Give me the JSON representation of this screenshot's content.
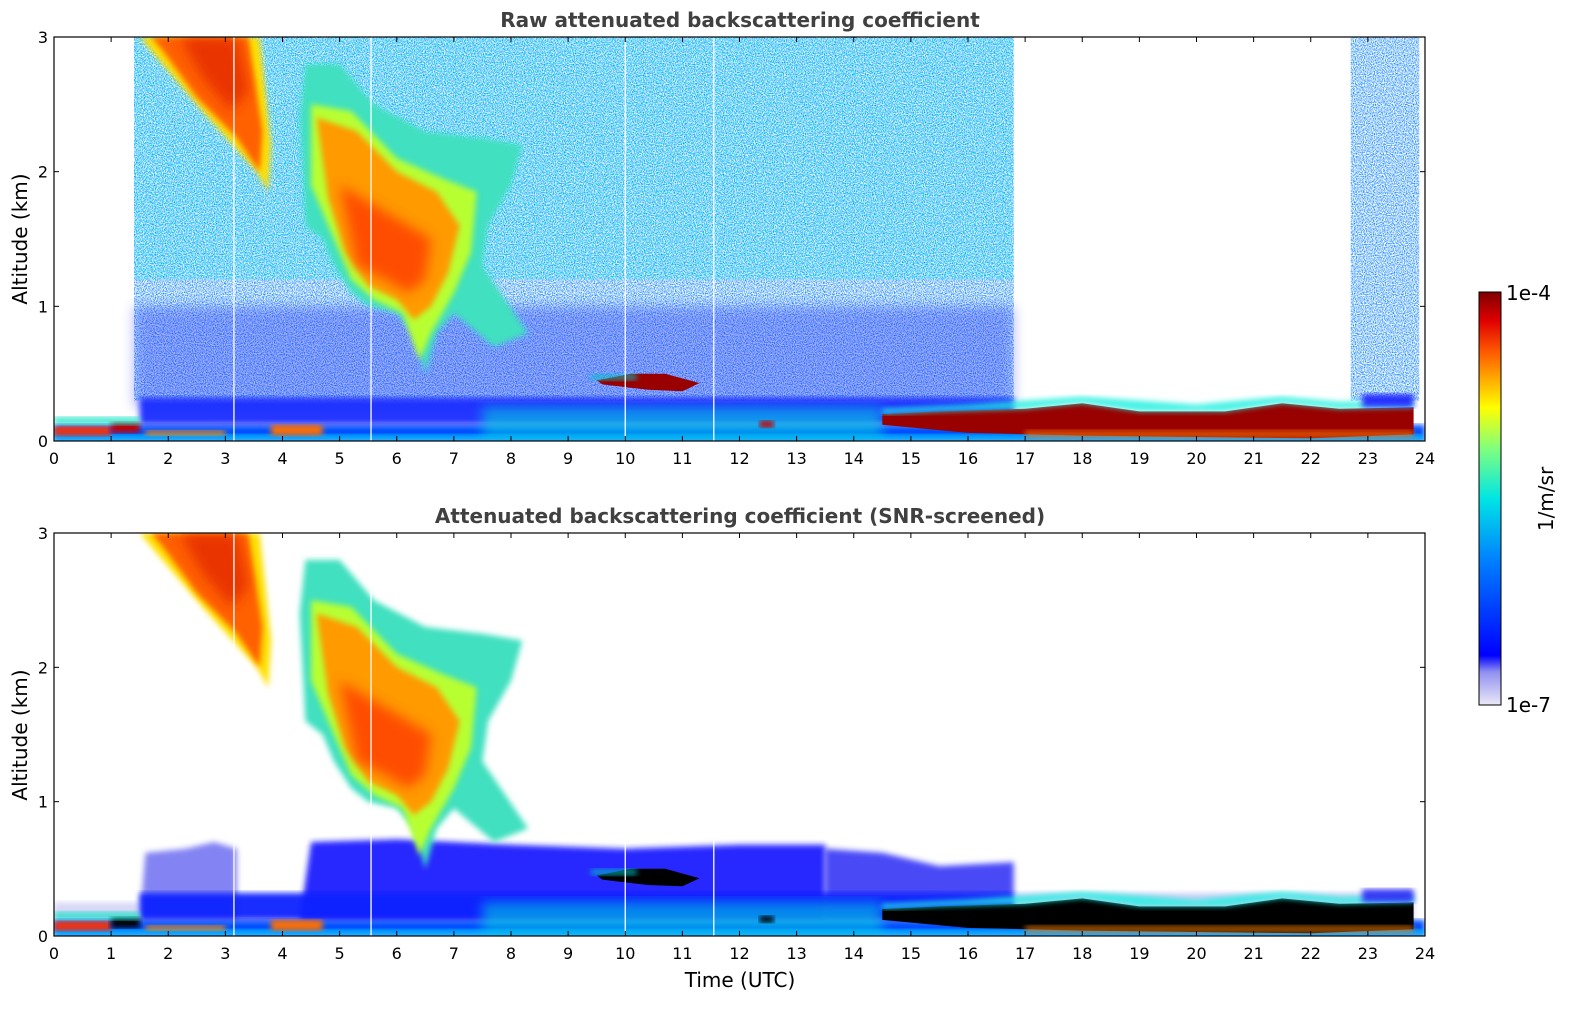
{
  "chart_data": [
    {
      "type": "heatmap",
      "title": "Raw attenuated backscattering coefficient",
      "xlabel": "",
      "ylabel": "Altitude (km)",
      "xlim": [
        0,
        24
      ],
      "ylim": [
        0,
        3
      ],
      "x_ticks": [
        0,
        1,
        2,
        3,
        4,
        5,
        6,
        7,
        8,
        9,
        10,
        11,
        12,
        13,
        14,
        15,
        16,
        17,
        18,
        19,
        20,
        21,
        22,
        23,
        24
      ],
      "y_ticks": [
        0,
        1,
        2,
        3
      ],
      "x_tick_labels": [
        "0",
        "1",
        "2",
        "3",
        "4",
        "5",
        "6",
        "7",
        "8",
        "9",
        "10",
        "11",
        "12",
        "13",
        "14",
        "15",
        "16",
        "17",
        "18",
        "19",
        "20",
        "21",
        "22",
        "23",
        "24"
      ],
      "y_tick_labels": [
        "0",
        "1",
        "2",
        "3"
      ],
      "features": [
        {
          "x": [
            1.5,
            3.8
          ],
          "alt_top": [
            3.0,
            1.9
          ],
          "level": "high"
        },
        {
          "x": [
            4.3,
            8.2
          ],
          "alt_top": [
            2.8,
            0.5
          ],
          "level": "high"
        },
        {
          "x": [
            9.5,
            11.3
          ],
          "alt": [
            0.35,
            0.5
          ],
          "level": "very high"
        },
        {
          "x": [
            14.5,
            23.8
          ],
          "alt": [
            0.05,
            0.3
          ],
          "level": "very high"
        },
        {
          "x": [
            0,
            24
          ],
          "alt": [
            0,
            0.3
          ],
          "level": "low"
        },
        {
          "x": [
            1.4,
            16.8
          ],
          "alt": [
            0.3,
            3.0
          ],
          "level": "noise"
        }
      ]
    },
    {
      "type": "heatmap",
      "title": "Attenuated backscattering coefficient (SNR-screened)",
      "xlabel": "Time (UTC)",
      "ylabel": "Altitude (km)",
      "xlim": [
        0,
        24
      ],
      "ylim": [
        0,
        3
      ],
      "x_ticks": [
        0,
        1,
        2,
        3,
        4,
        5,
        6,
        7,
        8,
        9,
        10,
        11,
        12,
        13,
        14,
        15,
        16,
        17,
        18,
        19,
        20,
        21,
        22,
        23,
        24
      ],
      "y_ticks": [
        0,
        1,
        2,
        3
      ],
      "x_tick_labels": [
        "0",
        "1",
        "2",
        "3",
        "4",
        "5",
        "6",
        "7",
        "8",
        "9",
        "10",
        "11",
        "12",
        "13",
        "14",
        "15",
        "16",
        "17",
        "18",
        "19",
        "20",
        "21",
        "22",
        "23",
        "24"
      ],
      "y_tick_labels": [
        "0",
        "1",
        "2",
        "3"
      ],
      "features": [
        {
          "x": [
            1.5,
            3.8
          ],
          "alt_top": [
            3.0,
            1.9
          ],
          "level": "high"
        },
        {
          "x": [
            4.3,
            8.2
          ],
          "alt_top": [
            2.8,
            0.5
          ],
          "level": "high"
        },
        {
          "x": [
            9.5,
            11.3
          ],
          "alt": [
            0.35,
            0.5
          ],
          "level": "saturated"
        },
        {
          "x": [
            14.5,
            23.8
          ],
          "alt": [
            0.05,
            0.3
          ],
          "level": "saturated"
        },
        {
          "x": [
            1.5,
            16.8
          ],
          "alt": [
            0.1,
            0.7
          ],
          "level": "low"
        }
      ]
    }
  ],
  "colorbar": {
    "label": "1/m/sr",
    "max_label": "1e-4",
    "min_label": "1e-7",
    "scale": "log",
    "range": [
      1e-07,
      0.0001
    ],
    "colormap": "jet"
  },
  "colors": {
    "jet": [
      "#e6e6fa",
      "#0000ff",
      "#00bfff",
      "#40e0d0",
      "#adff2f",
      "#ffff00",
      "#ffa500",
      "#ff4500",
      "#8b0000"
    ],
    "saturated": "#000000",
    "title": "#404040"
  }
}
